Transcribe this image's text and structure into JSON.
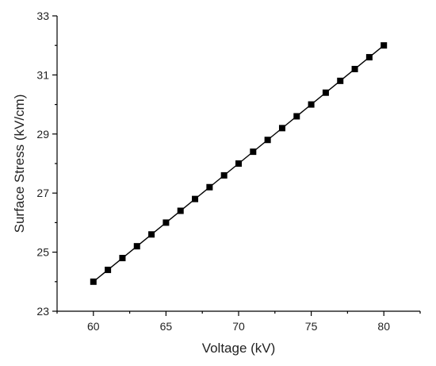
{
  "chart_data": {
    "type": "line",
    "title": "",
    "xlabel": "Voltage (kV)",
    "ylabel": "Surface Stress (kV/cm)",
    "xlim": [
      57.5,
      82.5
    ],
    "ylim": [
      23,
      33
    ],
    "x_ticks": [
      60,
      65,
      70,
      75,
      80
    ],
    "x_tick_labels": [
      "60",
      "65",
      "70",
      "75",
      "80"
    ],
    "y_ticks": [
      23,
      25,
      27,
      29,
      31,
      33
    ],
    "y_tick_labels": [
      "23",
      "25",
      "27",
      "29",
      "31",
      "33"
    ],
    "grid": false,
    "marker": "square",
    "series": [
      {
        "x": [
          60,
          61,
          62,
          63,
          64,
          65,
          66,
          67,
          68,
          69,
          70,
          71,
          72,
          73,
          74,
          75,
          76,
          77,
          78,
          79,
          80
        ],
        "y": [
          24.0,
          24.4,
          24.8,
          25.2,
          25.6,
          26.0,
          26.4,
          26.8,
          27.2,
          27.6,
          28.0,
          28.4,
          28.8,
          29.2,
          29.6,
          30.0,
          30.4,
          30.8,
          31.2,
          31.6,
          32.0
        ]
      }
    ]
  }
}
